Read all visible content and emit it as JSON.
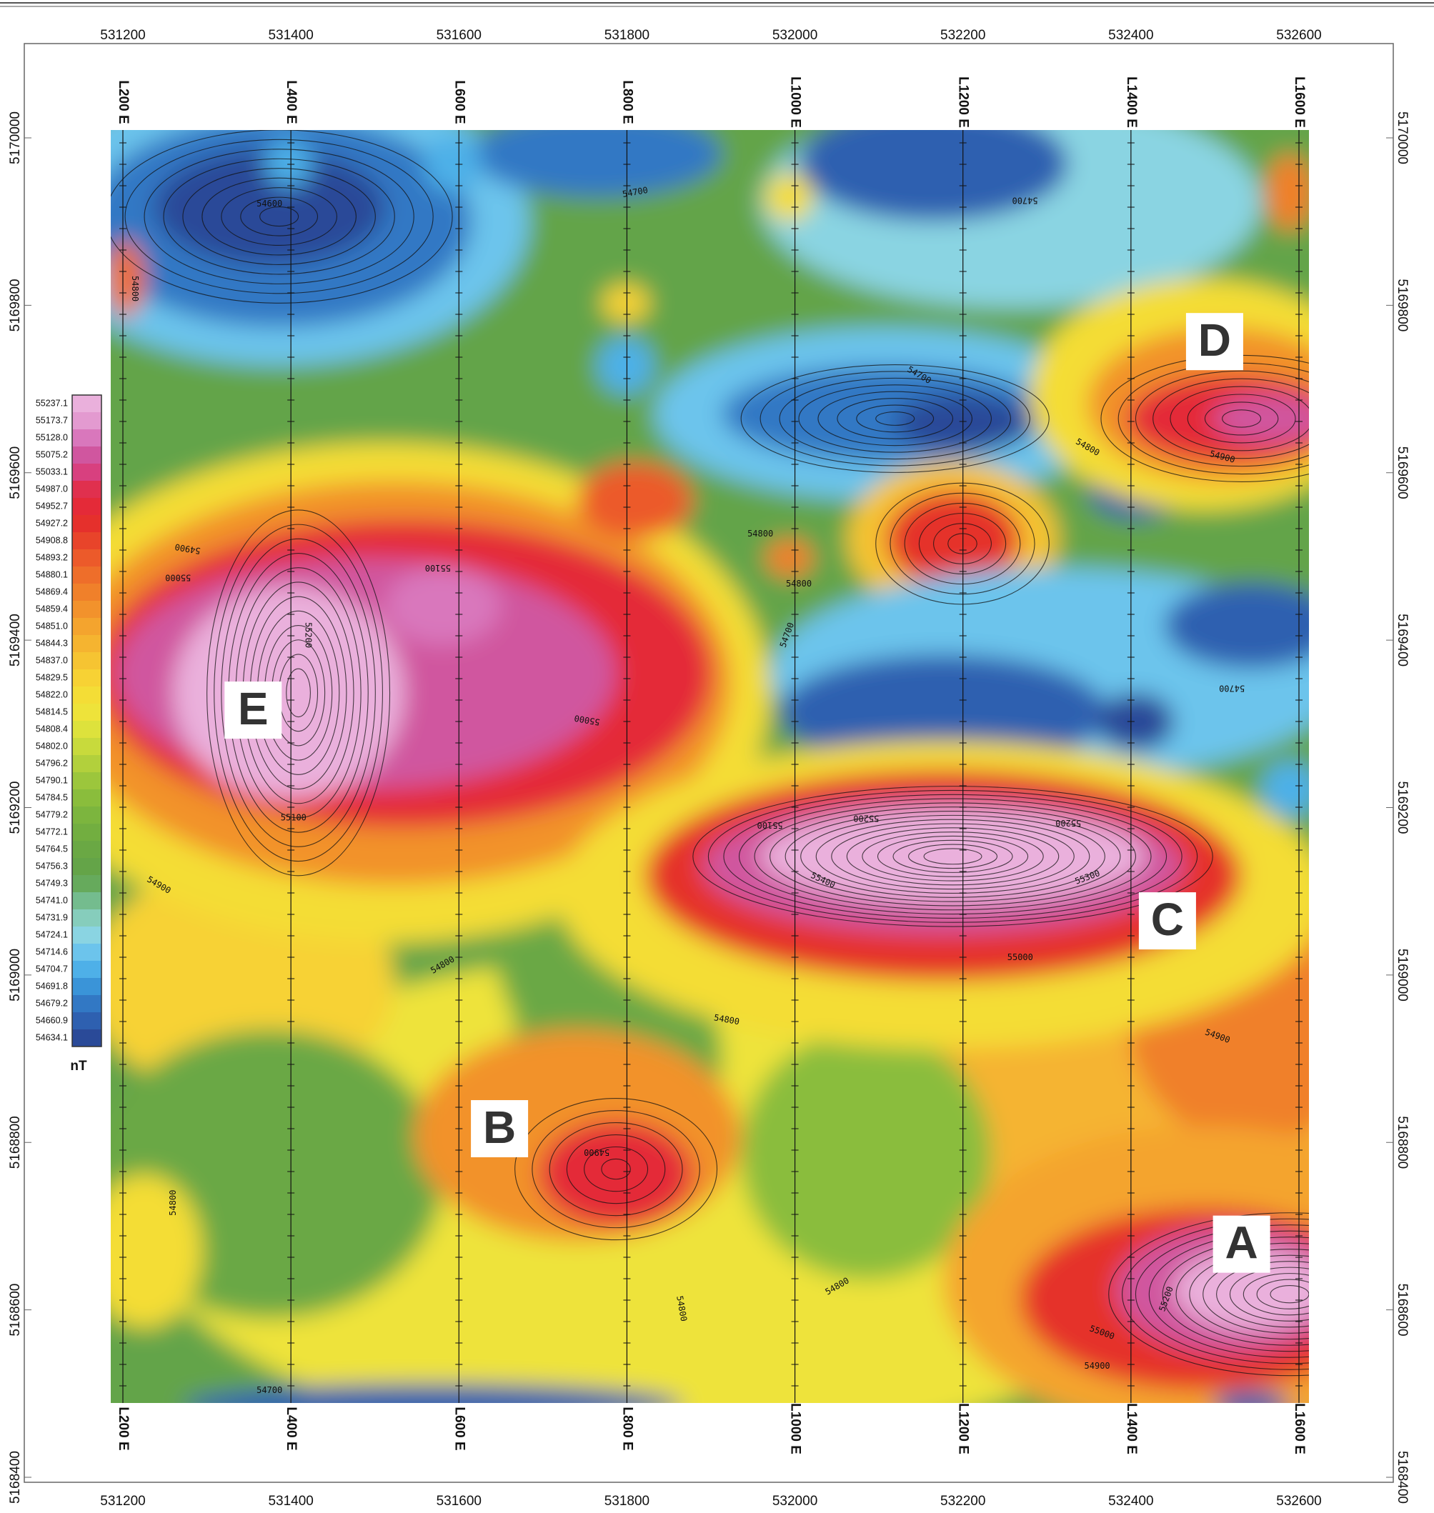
{
  "map": {
    "x_ticks": [
      531200,
      531400,
      531600,
      531800,
      532000,
      532200,
      532400,
      532600
    ],
    "y_ticks": [
      5168400,
      5168600,
      5168800,
      5169000,
      5169200,
      5169400,
      5169600,
      5169800,
      5170000
    ],
    "lines": [
      "L200 E",
      "L400 E",
      "L600 E",
      "L800 E",
      "L1000 E",
      "L1200 E",
      "L1400 E",
      "L1600 E"
    ],
    "legend": {
      "unit": "nT",
      "labels": [
        "55237.1",
        "55173.7",
        "55128.0",
        "55075.2",
        "55033.1",
        "54987.0",
        "54952.7",
        "54927.2",
        "54908.8",
        "54893.2",
        "54880.1",
        "54869.4",
        "54859.4",
        "54851.0",
        "54844.3",
        "54837.0",
        "54829.5",
        "54822.0",
        "54814.5",
        "54808.4",
        "54802.0",
        "54796.2",
        "54790.1",
        "54784.5",
        "54779.2",
        "54772.1",
        "54764.5",
        "54756.3",
        "54749.3",
        "54741.0",
        "54731.9",
        "54724.1",
        "54714.6",
        "54704.7",
        "54691.8",
        "54679.2",
        "54660.9",
        "54634.1"
      ],
      "colors": [
        "#eab0dc",
        "#e39ad0",
        "#d977bc",
        "#d0569f",
        "#d8407f",
        "#e0304e",
        "#e42a38",
        "#e5302c",
        "#e8442a",
        "#ec5a2a",
        "#ee6e2a",
        "#f0802a",
        "#f2922c",
        "#f4a42e",
        "#f5b430",
        "#f6c432",
        "#f7d234",
        "#f4dd36",
        "#eee33a",
        "#dde23c",
        "#c8da3c",
        "#b2d03c",
        "#9cc63c",
        "#8abd3c",
        "#7cb53e",
        "#72ae40",
        "#6aa844",
        "#64a448",
        "#66aa5c",
        "#74bc8e",
        "#86cdbc",
        "#8ad4e2",
        "#6cc4ec",
        "#4eb0e8",
        "#3a94d8",
        "#3278c4",
        "#2e60b0",
        "#2a4a98"
      ]
    },
    "anomalies": [
      "A",
      "B",
      "C",
      "D",
      "E"
    ],
    "contour_labels": [
      54600,
      54700,
      54700,
      54800,
      54700,
      54800,
      54900,
      54900,
      55000,
      55100,
      55200,
      54800,
      54800,
      54700,
      54700,
      55000,
      55100,
      55100,
      55200,
      55200,
      55400,
      55300,
      55000,
      54900,
      54800,
      54800,
      54900,
      54900,
      54800,
      54800,
      54800,
      55200,
      55000,
      54900,
      54700
    ]
  }
}
